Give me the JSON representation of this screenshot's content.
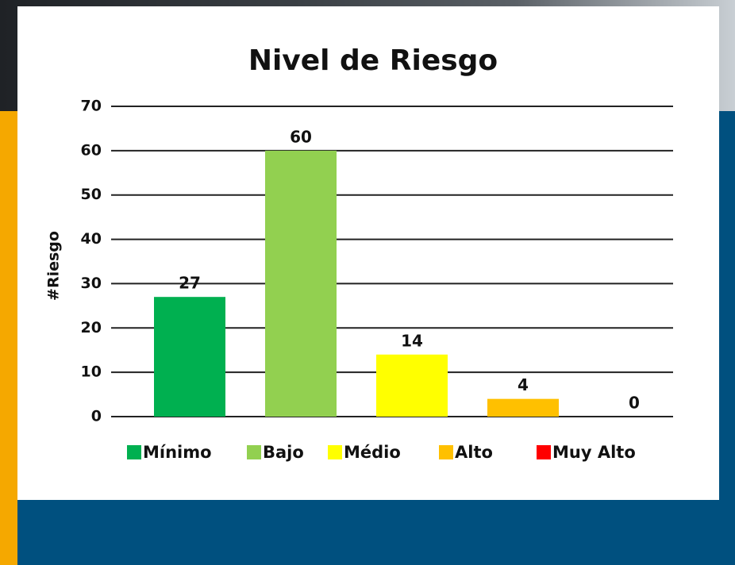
{
  "chart_data": {
    "type": "bar",
    "title": "Nivel de Riesgo",
    "y_label": "#Riesgo",
    "categories": [
      "Mínimo",
      "Bajo",
      "Médio",
      "Alto",
      "Muy Alto"
    ],
    "values": [
      27,
      60,
      14,
      4,
      0
    ],
    "colors": [
      "#00b050",
      "#92d050",
      "#ffff00",
      "#ffc000",
      "#ff0000"
    ],
    "ylim": [
      0,
      70
    ],
    "yticks": [
      0,
      10,
      20,
      30,
      40,
      50,
      60,
      70
    ],
    "grid": true,
    "legend": "bottom"
  }
}
